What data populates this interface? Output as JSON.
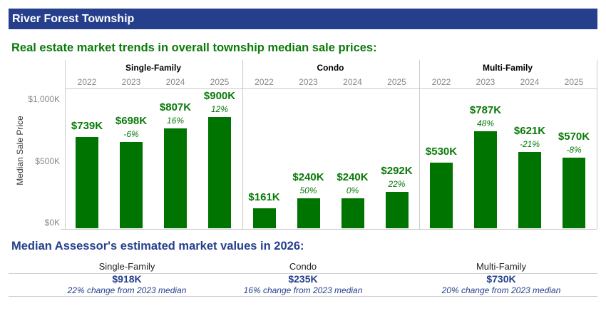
{
  "header": {
    "title": "River Forest Township"
  },
  "subtitle": "Real estate market trends in overall township median sale prices:",
  "chart_data": {
    "type": "bar",
    "ylabel": "Median Sale Price",
    "ylim": [
      0,
      1000
    ],
    "yticks": [
      "$0K",
      "$500K",
      "$1,000K"
    ],
    "ytick_values": [
      0,
      500,
      1000
    ],
    "panels": [
      {
        "name": "Single-Family",
        "years": [
          "2022",
          "2023",
          "2024",
          "2025"
        ],
        "values": [
          739,
          698,
          807,
          900
        ],
        "labels": [
          "$739K",
          "$698K",
          "$807K",
          "$900K"
        ],
        "changes": [
          "",
          "-6%",
          "16%",
          "12%"
        ]
      },
      {
        "name": "Condo",
        "years": [
          "2022",
          "2023",
          "2024",
          "2025"
        ],
        "values": [
          161,
          240,
          240,
          292
        ],
        "labels": [
          "$161K",
          "$240K",
          "$240K",
          "$292K"
        ],
        "changes": [
          "",
          "50%",
          "0%",
          "22%"
        ]
      },
      {
        "name": "Multi-Family",
        "years": [
          "2022",
          "2023",
          "2024",
          "2025"
        ],
        "values": [
          530,
          787,
          621,
          570
        ],
        "labels": [
          "$530K",
          "$787K",
          "$621K",
          "$570K"
        ],
        "changes": [
          "",
          "48%",
          "-21%",
          "-8%"
        ]
      }
    ],
    "bar_color": "#007400"
  },
  "assessor": {
    "title": "Median Assessor's estimated market values in 2026:",
    "items": [
      {
        "category": "Single-Family",
        "value": "$918K",
        "note": "22% change from 2023 median"
      },
      {
        "category": "Condo",
        "value": "$235K",
        "note": "16% change from 2023 median"
      },
      {
        "category": "Multi-Family",
        "value": "$730K",
        "note": "20% change from 2023 median"
      }
    ]
  }
}
